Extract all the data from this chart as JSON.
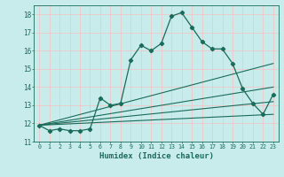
{
  "title": "",
  "xlabel": "Humidex (Indice chaleur)",
  "ylabel": "",
  "bg_color": "#c8ecec",
  "grid_color": "#f0c8c8",
  "line_color": "#1a6b5a",
  "xlim": [
    -0.5,
    23.5
  ],
  "ylim": [
    11,
    18.5
  ],
  "yticks": [
    11,
    12,
    13,
    14,
    15,
    16,
    17,
    18
  ],
  "xticks": [
    0,
    1,
    2,
    3,
    4,
    5,
    6,
    7,
    8,
    9,
    10,
    11,
    12,
    13,
    14,
    15,
    16,
    17,
    18,
    19,
    20,
    21,
    22,
    23
  ],
  "series": [
    {
      "x": [
        0,
        1,
        2,
        3,
        4,
        5,
        6,
        7,
        8,
        9,
        10,
        11,
        12,
        13,
        14,
        15,
        16,
        17,
        18,
        19,
        20,
        21,
        22,
        23
      ],
      "y": [
        11.9,
        11.6,
        11.7,
        11.6,
        11.6,
        11.7,
        13.4,
        13.0,
        13.1,
        15.5,
        16.3,
        16.0,
        16.4,
        17.9,
        18.1,
        17.3,
        16.5,
        16.1,
        16.1,
        15.3,
        13.9,
        13.1,
        12.5,
        13.6
      ],
      "marker": "D",
      "markersize": 2.2,
      "linewidth": 0.9
    },
    {
      "x": [
        0,
        23
      ],
      "y": [
        11.9,
        15.3
      ],
      "marker": null,
      "linewidth": 0.8
    },
    {
      "x": [
        0,
        23
      ],
      "y": [
        11.9,
        14.0
      ],
      "marker": null,
      "linewidth": 0.8
    },
    {
      "x": [
        0,
        23
      ],
      "y": [
        11.9,
        13.2
      ],
      "marker": null,
      "linewidth": 0.8
    },
    {
      "x": [
        0,
        23
      ],
      "y": [
        11.9,
        12.5
      ],
      "marker": null,
      "linewidth": 0.8
    }
  ]
}
